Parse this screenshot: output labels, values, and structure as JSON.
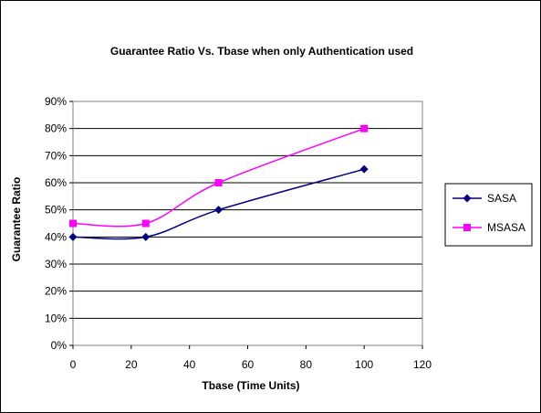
{
  "chart_data": {
    "type": "line",
    "title": "Guarantee Ratio Vs. Tbase when only Authentication  used",
    "xlabel": "Tbase (Time Units)",
    "ylabel": "Guarantee Ratio",
    "xlim": [
      0,
      120
    ],
    "ylim": [
      0,
      0.9
    ],
    "xticks": [
      "0",
      "20",
      "40",
      "60",
      "80",
      "100",
      "120"
    ],
    "yticks": [
      "0%",
      "10%",
      "20%",
      "30%",
      "40%",
      "50%",
      "60%",
      "70%",
      "80%",
      "90%"
    ],
    "grid": "horizontal",
    "legend_position": "right",
    "series": [
      {
        "name": "SASA",
        "color": "#000080",
        "marker": "diamond",
        "x": [
          0,
          25,
          50,
          100
        ],
        "y": [
          0.4,
          0.4,
          0.5,
          0.65
        ]
      },
      {
        "name": "MSASA",
        "color": "#ff00ff",
        "marker": "square",
        "x": [
          0,
          25,
          50,
          100
        ],
        "y": [
          0.45,
          0.45,
          0.6,
          0.8
        ]
      }
    ]
  }
}
